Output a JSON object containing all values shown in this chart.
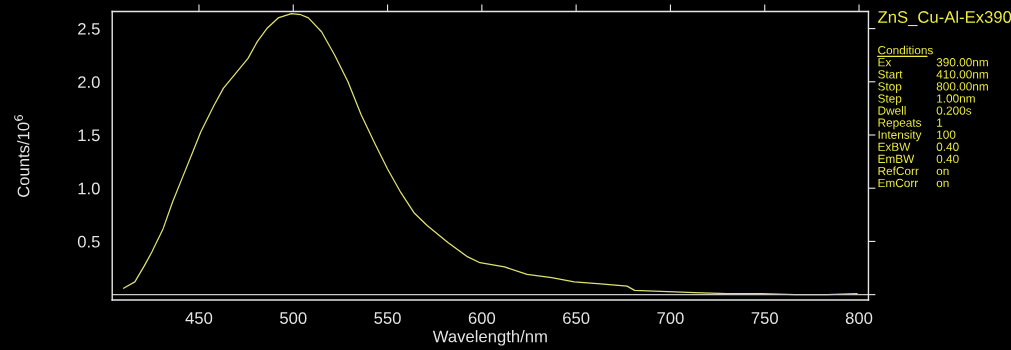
{
  "chart_data": {
    "type": "line",
    "title": "ZnS_Cu-Al-Ex390",
    "xlabel": "Wavelength/nm",
    "ylabel": "Counts/10$^{6}$",
    "annotations": [
      "Conditions",
      "Ex 390.00nm",
      "Start 410.00nm",
      "Stop 800.00nm",
      "Step 1.00nm",
      "Dwell 0.200s",
      "Repeats 1",
      "Intensity 100",
      "ExBW 0.40",
      "EmBW 0.40",
      "RefCorr on",
      "EmCorr on"
    ],
    "series": [
      {
        "color": "#e0e070",
        "x": [
          410,
          416,
          421,
          425,
          431,
          436,
          441,
          446,
          451,
          458,
          463,
          470,
          476,
          481,
          486,
          492,
          499,
          504,
          508,
          515,
          522,
          529,
          536,
          543,
          550,
          557,
          564,
          571,
          582,
          592,
          599,
          612,
          624,
          637,
          649,
          663,
          677,
          681,
          695,
          713,
          730,
          748,
          766,
          783,
          799
        ],
        "values": [
          0.06,
          0.12,
          0.27,
          0.4,
          0.62,
          0.87,
          1.09,
          1.31,
          1.53,
          1.78,
          1.94,
          2.09,
          2.22,
          2.38,
          2.5,
          2.6,
          2.64,
          2.63,
          2.6,
          2.47,
          2.25,
          2.0,
          1.69,
          1.43,
          1.18,
          0.96,
          0.77,
          0.65,
          0.49,
          0.36,
          0.3,
          0.26,
          0.19,
          0.16,
          0.12,
          0.1,
          0.08,
          0.04,
          0.03,
          0.02,
          0.01,
          0.01,
          0.0,
          0.0,
          0.01
        ]
      }
    ],
    "xlim": [
      404,
      805
    ],
    "ylim": [
      -0.05,
      2.66
    ],
    "xticks": [
      450,
      500,
      550,
      600,
      650,
      700,
      750,
      800
    ],
    "yticks": [
      {
        "value": 0,
        "label": null
      },
      0.5,
      {
        "value": 1,
        "label": "1.0"
      },
      1.5,
      {
        "value": 2,
        "label": "2.0"
      },
      2.5
    ],
    "ref_lines": [
      {
        "axis": "y",
        "value": 0,
        "color": "#c8c8c8"
      }
    ],
    "grid": false,
    "legend": false,
    "marker": "none",
    "line_style": "solid"
  }
}
